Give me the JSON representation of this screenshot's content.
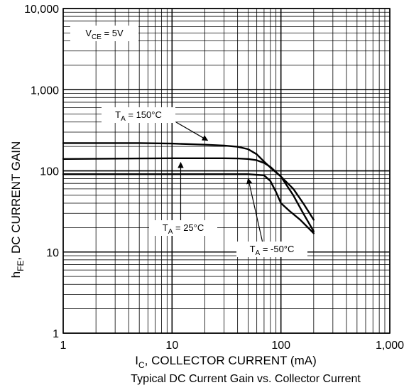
{
  "chart_data": {
    "type": "line",
    "title": "Typical DC Current Gain vs. Collector Current",
    "xlabel": {
      "main": "I",
      "sub": "C",
      "rest": ", COLLECTOR CURRENT (mA)"
    },
    "ylabel": {
      "main": "h",
      "sub": "FE",
      "rest": ", DC CURRENT GAIN"
    },
    "x_scale": "log",
    "y_scale": "log",
    "xlim": [
      1,
      1000
    ],
    "ylim": [
      1,
      10000
    ],
    "grid": true,
    "x_ticks": [
      {
        "value": 1,
        "label": "1"
      },
      {
        "value": 10,
        "label": "10"
      },
      {
        "value": 100,
        "label": "100"
      },
      {
        "value": 1000,
        "label": "1,000"
      }
    ],
    "y_ticks": [
      {
        "value": 1,
        "label": "1"
      },
      {
        "value": 10,
        "label": "10"
      },
      {
        "value": 100,
        "label": "100"
      },
      {
        "value": 1000,
        "label": "1,000"
      },
      {
        "value": 10000,
        "label": "10,000"
      }
    ],
    "condition": {
      "main": "V",
      "sub": "CE",
      "rest": " = 5V"
    },
    "series": [
      {
        "name": "T_A = 150°C",
        "label": {
          "main": "T",
          "sub": "A",
          "rest": " = 150°C"
        },
        "x": [
          1,
          5,
          10,
          20,
          30,
          40,
          50,
          60,
          70,
          80,
          100,
          130,
          160,
          200
        ],
        "y": [
          220,
          220,
          217,
          210,
          205,
          198,
          185,
          160,
          130,
          110,
          85,
          60,
          40,
          25
        ]
      },
      {
        "name": "T_A = 25°C",
        "label": {
          "main": "T",
          "sub": "A",
          "rest": " = 25°C"
        },
        "x": [
          1,
          5,
          10,
          20,
          30,
          40,
          50,
          60,
          70,
          80,
          100,
          130,
          160,
          200
        ],
        "y": [
          140,
          142,
          143,
          143,
          143,
          142,
          140,
          135,
          125,
          112,
          85,
          50,
          30,
          18
        ]
      },
      {
        "name": "T_A = -50°C",
        "label": {
          "main": "T",
          "sub": "A",
          "rest": " = -50°C"
        },
        "x": [
          1,
          10,
          30,
          50,
          70,
          80,
          90,
          100,
          120,
          150,
          200
        ],
        "y": [
          91,
          91,
          91,
          91,
          88,
          75,
          55,
          40,
          32,
          25,
          17
        ]
      }
    ]
  }
}
